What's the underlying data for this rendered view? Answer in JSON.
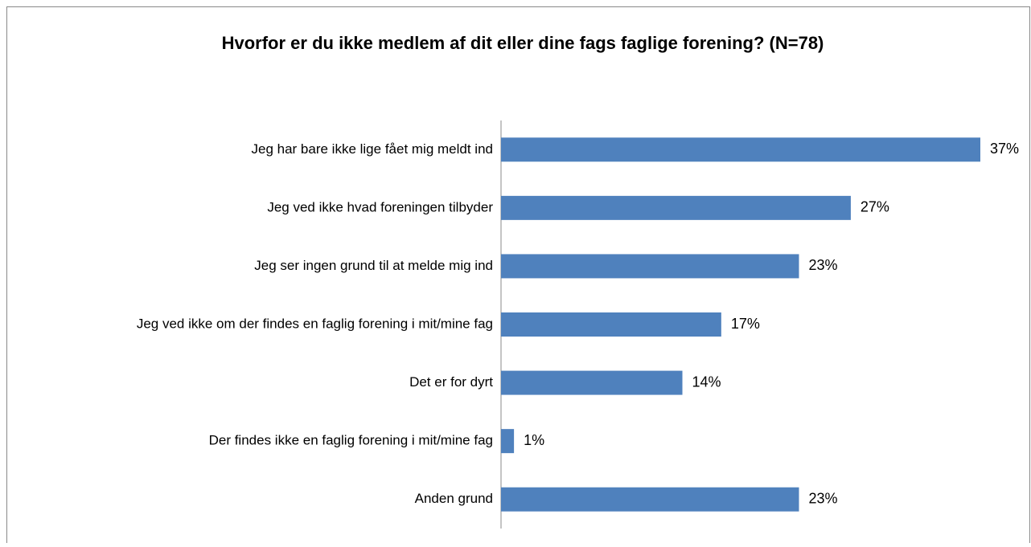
{
  "chart_data": {
    "type": "bar",
    "orientation": "horizontal",
    "title": "Hvorfor er du ikke medlem af dit eller dine fags faglige forening? (N=78)",
    "categories": [
      "Jeg har bare ikke lige fået mig meldt ind",
      "Jeg ved ikke hvad foreningen tilbyder",
      "Jeg ser ingen grund til at melde mig ind",
      "Jeg ved ikke om der findes en faglig forening i mit/mine fag",
      "Det er for dyrt",
      "Der findes ikke en faglig forening i mit/mine fag",
      "Anden grund"
    ],
    "values": [
      37,
      27,
      23,
      17,
      14,
      1,
      23
    ],
    "value_labels": [
      "37%",
      "27%",
      "23%",
      "17%",
      "14%",
      "1%",
      "23%"
    ],
    "color": "#4f81bd"
  }
}
